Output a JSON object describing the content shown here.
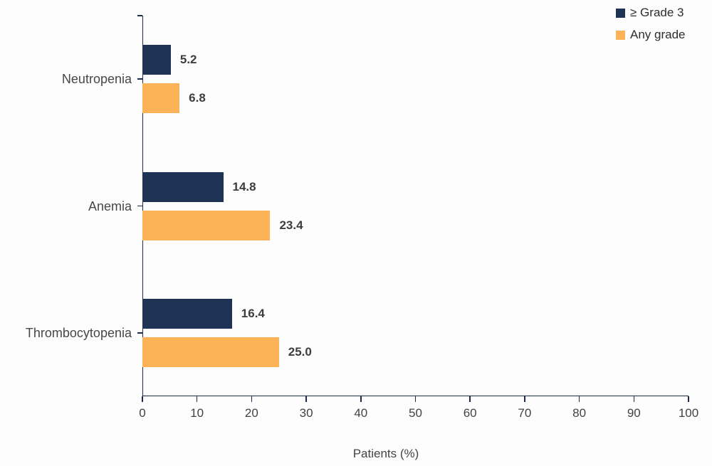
{
  "colors": {
    "navy": "#1f3356",
    "orange": "#fcb357",
    "axis": "#1c2b4a",
    "background": "#fdfdfe",
    "value_text": "#3d3d3d"
  },
  "chart_data": {
    "type": "bar",
    "orientation": "horizontal",
    "categories": [
      "Neutropenia",
      "Anemia",
      "Thrombocytopenia"
    ],
    "series": [
      {
        "name": "≥ Grade 3",
        "color": "#1f3356",
        "values": [
          5.2,
          14.8,
          16.4
        ],
        "labels": [
          "5.2",
          "14.8",
          "16.4"
        ]
      },
      {
        "name": "Any grade",
        "color": "#fcb357",
        "values": [
          6.8,
          23.4,
          25.0
        ],
        "labels": [
          "6.8",
          "23.4",
          "25.0"
        ]
      }
    ],
    "xlabel": "Patients (%)",
    "xlim": [
      0,
      100
    ],
    "x_ticks": [
      0,
      10,
      20,
      30,
      40,
      50,
      60,
      70,
      80,
      90,
      100
    ],
    "grid": false,
    "legend_position": "top-right",
    "value_labels_shown": true
  }
}
